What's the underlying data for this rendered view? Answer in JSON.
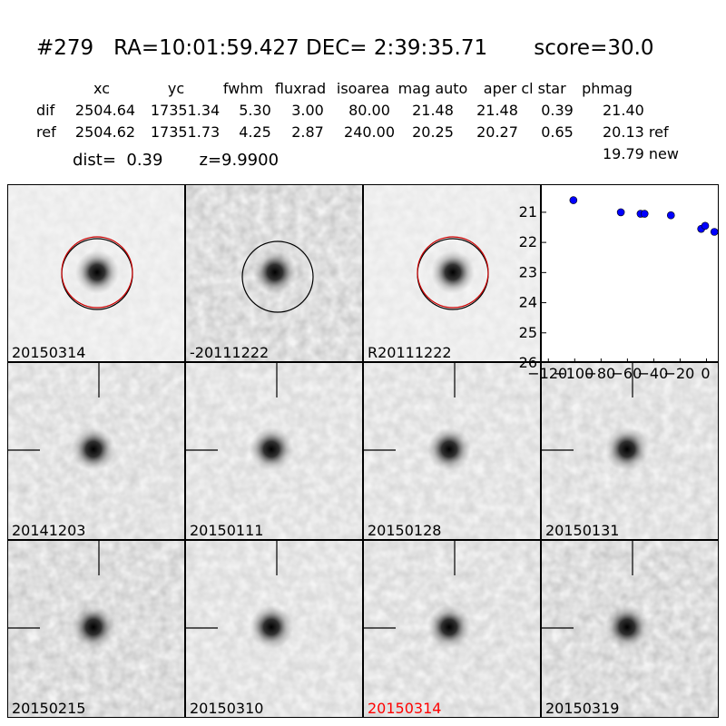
{
  "header": {
    "title": "#279   RA=10:01:59.427 DEC= 2:39:35.71       score=30.0"
  },
  "table": {
    "columns": [
      "xc",
      "yc",
      "fwhm",
      "fluxrad",
      "isoarea",
      "mag auto",
      "aper",
      "cl star",
      "phmag"
    ],
    "rows": [
      {
        "label": "dif",
        "values": [
          "2504.64",
          "17351.34",
          "5.30",
          "3.00",
          "80.00",
          "21.48",
          "21.48",
          "0.39",
          "21.40"
        ]
      },
      {
        "label": "ref",
        "values": [
          "2504.62",
          "17351.73",
          "4.25",
          "2.87",
          "240.00",
          "20.25",
          "20.27",
          "0.65",
          "20.13 ref"
        ]
      }
    ],
    "extra": "19.79 new"
  },
  "dist_line": "dist=  0.39       z=9.9900",
  "panels": [
    {
      "label": "20150314",
      "circle": "red",
      "tint": 0.06,
      "color": "#000000"
    },
    {
      "label": "-20111222",
      "circle": "black",
      "tint": 0.22,
      "color": "#000000"
    },
    {
      "label": "R20111222",
      "circle": "red",
      "tint": 0.06,
      "color": "#000000"
    },
    {
      "label": "20141203",
      "circle": "cross",
      "tint": 0.16,
      "color": "#000000"
    },
    {
      "label": "20150111",
      "circle": "cross",
      "tint": 0.14,
      "color": "#000000"
    },
    {
      "label": "20150128",
      "circle": "cross",
      "tint": 0.14,
      "color": "#000000"
    },
    {
      "label": "20150131",
      "circle": "cross",
      "tint": 0.16,
      "color": "#000000"
    },
    {
      "label": "20150215",
      "circle": "cross",
      "tint": 0.22,
      "color": "#000000"
    },
    {
      "label": "20150310",
      "circle": "cross",
      "tint": 0.14,
      "color": "#000000"
    },
    {
      "label": "20150314",
      "circle": "cross",
      "tint": 0.16,
      "color": "#ff0000"
    },
    {
      "label": "20150319",
      "circle": "cross",
      "tint": 0.22,
      "color": "#000000"
    }
  ],
  "chart_data": {
    "type": "scatter",
    "x": [
      -101,
      -65,
      -50,
      -47,
      -27,
      -4,
      -1,
      6
    ],
    "y": [
      20.6,
      21.0,
      21.05,
      21.05,
      21.1,
      21.55,
      21.45,
      21.65
    ],
    "xticks": [
      -120,
      -100,
      -80,
      -60,
      -40,
      -20,
      0
    ],
    "xtick_labels": [
      "−120",
      "−100",
      "−80",
      "−60",
      "−40",
      "−20",
      "0"
    ],
    "yticks": [
      21,
      22,
      23,
      24,
      25,
      26
    ],
    "xlim": [
      -125,
      10
    ],
    "ylim": [
      26,
      20.1
    ],
    "marker_color": "#0000ff"
  }
}
